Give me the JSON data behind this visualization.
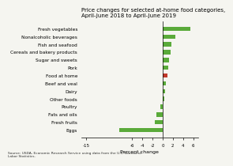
{
  "title": "Price changes for selected at-home food categories,\nApril-June 2018 to April-June 2019",
  "categories": [
    "Eggs",
    "Fresh fruits",
    "Fats and oils",
    "Poultry",
    "Other foods",
    "Dairy",
    "Beef and veal",
    "Food at home",
    "Pork",
    "Sugar and sweets",
    "Cereals and bakery products",
    "Fish and seafood",
    "Nonalcoholic beverages",
    "Fresh vegetables"
  ],
  "values": [
    -8.5,
    -1.6,
    -1.2,
    -0.5,
    0.3,
    0.5,
    0.7,
    0.9,
    1.1,
    1.3,
    1.6,
    1.8,
    2.5,
    5.5
  ],
  "colors": [
    "#5aaa3a",
    "#5aaa3a",
    "#5aaa3a",
    "#5aaa3a",
    "#5aaa3a",
    "#5aaa3a",
    "#5aaa3a",
    "#c0392b",
    "#5aaa3a",
    "#5aaa3a",
    "#5aaa3a",
    "#5aaa3a",
    "#5aaa3a",
    "#5aaa3a"
  ],
  "xlabel": "Percent change",
  "xlim": [
    -16,
    7
  ],
  "xticks": [
    -15,
    -6,
    -4,
    -2,
    0,
    2,
    4,
    6
  ],
  "xtick_labels": [
    "-15",
    "-6",
    "-4",
    "-2",
    "0",
    "2",
    "4",
    "6"
  ],
  "source_text": "Source: USDA, Economic Research Service using data from the U.S. Bureau of\nLabor Statistics.",
  "bg_color": "#f5f5f0",
  "bar_height": 0.55
}
